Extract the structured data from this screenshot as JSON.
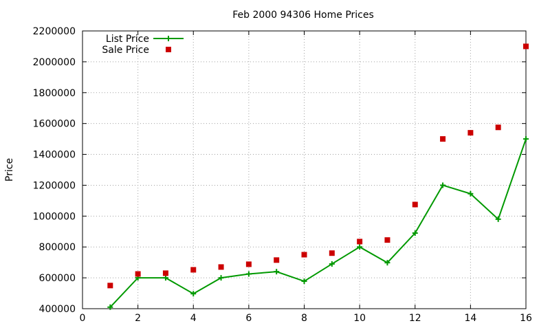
{
  "chart_data": {
    "type": "line",
    "title": "Feb 2000 94306 Home Prices",
    "xlabel": "",
    "ylabel": "Price",
    "xlim": [
      0,
      16
    ],
    "ylim": [
      400000,
      2200000
    ],
    "x_ticks": [
      "0",
      "2",
      "4",
      "6",
      "8",
      "10",
      "12",
      "14",
      "16"
    ],
    "y_ticks": [
      "400000",
      "600000",
      "800000",
      "1000000",
      "1200000",
      "1400000",
      "1600000",
      "1800000",
      "2000000",
      "2200000"
    ],
    "grid": true,
    "legend_position": "top-left",
    "series": [
      {
        "name": "List Price",
        "style": "line-with-plus-markers",
        "color": "#009900",
        "x": [
          1,
          2,
          3,
          4,
          5,
          6,
          7,
          8,
          9,
          10,
          11,
          12,
          13,
          14,
          15,
          16
        ],
        "values": [
          410000,
          600000,
          600000,
          497000,
          600000,
          625000,
          640000,
          578000,
          690000,
          800000,
          698000,
          890000,
          1200000,
          1145000,
          980000,
          1500000
        ]
      },
      {
        "name": "Sale Price",
        "style": "square-markers",
        "color": "#cc0000",
        "x": [
          1,
          2,
          3,
          4,
          5,
          6,
          7,
          8,
          9,
          10,
          11,
          12,
          13,
          14,
          15,
          16
        ],
        "values": [
          550000,
          625000,
          630000,
          652000,
          670000,
          688000,
          715000,
          750000,
          760000,
          835000,
          845000,
          1075000,
          1500000,
          1540000,
          1575000,
          2100000
        ]
      }
    ]
  }
}
